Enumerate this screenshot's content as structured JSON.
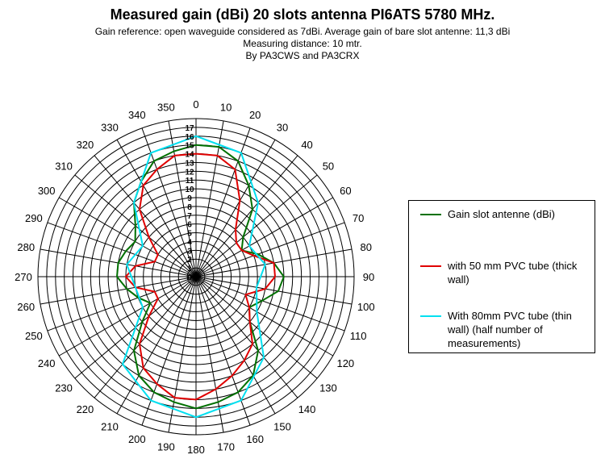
{
  "chart_data": {
    "type": "polar-line",
    "title": "Measured gain (dBi) 20 slots antenna PI6ATS 5780 MHz.",
    "subtitle_lines": [
      "Gain reference: open waveguide considered as 7dBi. Average gain of bare slot antenne: 11,3 dBi",
      "Measuring distance: 10 mtr.",
      "By PA3CWS and PA3CRX"
    ],
    "angle_labels": [
      "0",
      "10",
      "20",
      "30",
      "40",
      "50",
      "60",
      "70",
      "80",
      "90",
      "100",
      "110",
      "120",
      "130",
      "140",
      "150",
      "160",
      "170",
      "180",
      "190",
      "200",
      "210",
      "220",
      "230",
      "240",
      "250",
      "260",
      "270",
      "280",
      "290",
      "300",
      "310",
      "320",
      "330",
      "340",
      "350"
    ],
    "radial_labels": [
      "0",
      "1",
      "2",
      "3",
      "4",
      "5",
      "6",
      "7",
      "8",
      "9",
      "10",
      "11",
      "12",
      "13",
      "14",
      "15",
      "16",
      "17"
    ],
    "rlim": [
      0,
      18
    ],
    "grid": true,
    "legend_position": "right",
    "series": [
      {
        "name": "Gain slot antenne (dBi)",
        "color": "#007000",
        "angles": [
          0,
          10,
          20,
          30,
          40,
          50,
          60,
          70,
          80,
          90,
          100,
          110,
          120,
          130,
          140,
          150,
          160,
          170,
          180,
          190,
          200,
          210,
          220,
          230,
          240,
          250,
          260,
          270,
          280,
          290,
          300,
          310,
          320,
          330,
          340,
          350
        ],
        "values": [
          15,
          15,
          14,
          12,
          10,
          7,
          6,
          7.5,
          9,
          10,
          9.5,
          8,
          7,
          8,
          11,
          13,
          14,
          14.5,
          15,
          14.5,
          14,
          13,
          11,
          8,
          6,
          7,
          8,
          9,
          9,
          8.5,
          8,
          9,
          11,
          12.5,
          14,
          14.5
        ]
      },
      {
        "name": "with 50 mm PVC tube (thick wall)",
        "color": "#e00000",
        "angles": [
          0,
          10,
          20,
          30,
          40,
          50,
          60,
          70,
          80,
          90,
          100,
          110,
          120,
          130,
          140,
          150,
          160,
          170,
          180,
          190,
          200,
          210,
          220,
          230,
          240,
          250,
          260,
          270,
          280,
          290,
          300,
          310,
          320,
          330,
          340,
          350
        ],
        "values": [
          14,
          14,
          13,
          10,
          7,
          6,
          6,
          7,
          9,
          9,
          8,
          6,
          7,
          8,
          10,
          11,
          12,
          13,
          14,
          14,
          13,
          12,
          10,
          7,
          5,
          5,
          7,
          8,
          7,
          5,
          5,
          7,
          10,
          12,
          13,
          14
        ]
      },
      {
        "name": "With 80mm PVC tube (thin wall) (half number of measurements)",
        "color": "#00e0f0",
        "angles": [
          0,
          20,
          40,
          60,
          80,
          100,
          120,
          140,
          160,
          180,
          200,
          220,
          240,
          260,
          280,
          300,
          320,
          340
        ],
        "values": [
          16,
          15,
          11,
          7,
          8,
          7,
          8,
          12,
          15,
          16,
          15,
          13,
          7,
          7,
          8,
          7,
          11,
          15
        ]
      }
    ]
  }
}
